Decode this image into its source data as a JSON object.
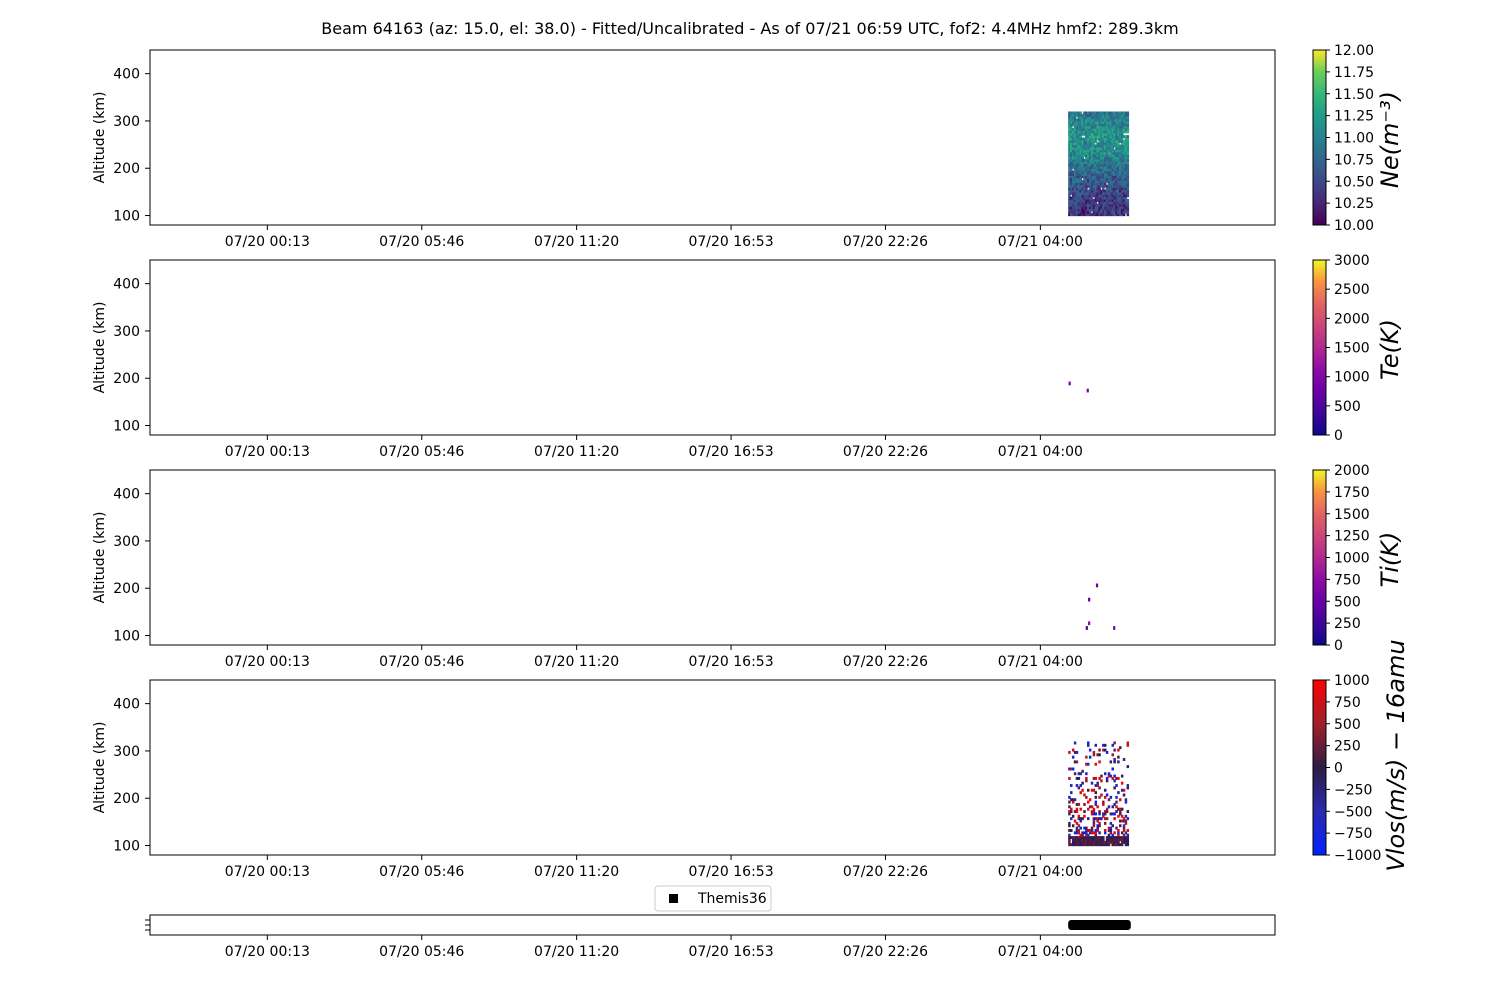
{
  "title": "Beam 64163 (az: 15.0, el: 38.0) - Fitted/Uncalibrated - As of 07/21 06:59 UTC, fof2: 4.4MHz  hmf2: 289.3km",
  "chart_data": [
    {
      "type": "heatmap",
      "parameter": "Ne",
      "ylabel": "Altitude (km)",
      "x_ticks": [
        "07/20 00:13",
        "07/20 05:46",
        "07/20 11:20",
        "07/20 16:53",
        "07/20 22:26",
        "07/21 04:00"
      ],
      "xlim": [
        "07/19 20:00",
        "07/21 12:26"
      ],
      "ylim": [
        80,
        450
      ],
      "y_ticks": [
        100,
        200,
        300,
        400
      ],
      "data_extent": {
        "x": [
          "07/21 05:00",
          "07/21 07:10"
        ],
        "y": [
          100,
          320
        ]
      },
      "colorbar": {
        "label": "Ne(m⁻³)",
        "scale": "log10",
        "colormap": "viridis",
        "range": [
          10.0,
          12.0
        ],
        "ticks": [
          "10.00",
          "10.25",
          "10.50",
          "10.75",
          "11.00",
          "11.25",
          "11.50",
          "11.75",
          "12.00"
        ]
      }
    },
    {
      "type": "heatmap",
      "parameter": "Te",
      "ylabel": "Altitude (km)",
      "x_ticks": [
        "07/20 00:13",
        "07/20 05:46",
        "07/20 11:20",
        "07/20 16:53",
        "07/20 22:26",
        "07/21 04:00"
      ],
      "xlim": [
        "07/19 20:00",
        "07/21 12:26"
      ],
      "ylim": [
        80,
        450
      ],
      "y_ticks": [
        100,
        200,
        300,
        400
      ],
      "points": [
        {
          "t": "07/21 05:03",
          "alt": 185,
          "value": 900
        },
        {
          "t": "07/21 05:42",
          "alt": 170,
          "value": 950
        }
      ],
      "colorbar": {
        "label": "Te(K)",
        "colormap": "plasma",
        "range": [
          0,
          3000
        ],
        "ticks": [
          "0",
          "500",
          "1000",
          "1500",
          "2000",
          "2500",
          "3000"
        ]
      }
    },
    {
      "type": "heatmap",
      "parameter": "Ti",
      "ylabel": "Altitude (km)",
      "x_ticks": [
        "07/20 00:13",
        "07/20 05:46",
        "07/20 11:20",
        "07/20 16:53",
        "07/20 22:26",
        "07/21 04:00"
      ],
      "xlim": [
        "07/19 20:00",
        "07/21 12:26"
      ],
      "ylim": [
        80,
        450
      ],
      "y_ticks": [
        100,
        200,
        300,
        400
      ],
      "points": [
        {
          "t": "07/21 05:40",
          "alt": 112,
          "value": 350
        },
        {
          "t": "07/21 05:45",
          "alt": 122,
          "value": 700
        },
        {
          "t": "07/21 05:45",
          "alt": 172,
          "value": 450
        },
        {
          "t": "07/21 06:02",
          "alt": 202,
          "value": 500
        },
        {
          "t": "07/21 06:39",
          "alt": 112,
          "value": 550
        }
      ],
      "colorbar": {
        "label": "Ti(K)",
        "colormap": "plasma",
        "range": [
          0,
          2000
        ],
        "ticks": [
          "0",
          "250",
          "500",
          "750",
          "1000",
          "1250",
          "1500",
          "1750",
          "2000"
        ]
      }
    },
    {
      "type": "heatmap",
      "parameter": "Vlos-16amu",
      "ylabel": "Altitude (km)",
      "x_ticks": [
        "07/20 00:13",
        "07/20 05:46",
        "07/20 11:20",
        "07/20 16:53",
        "07/20 22:26",
        "07/21 04:00"
      ],
      "xlim": [
        "07/19 20:00",
        "07/21 12:26"
      ],
      "ylim": [
        80,
        450
      ],
      "y_ticks": [
        100,
        200,
        300,
        400
      ],
      "data_extent": {
        "x": [
          "07/21 05:00",
          "07/21 07:10"
        ],
        "y": [
          100,
          320
        ]
      },
      "colorbar": {
        "label": "Vlos(m/s) − 16amu",
        "colormap": "bwr-dark",
        "range": [
          -1000,
          1000
        ],
        "ticks": [
          "1000",
          "750",
          "500",
          "250",
          "0",
          "−250",
          "−500",
          "−750",
          "−1000"
        ]
      }
    },
    {
      "type": "scatter",
      "parameter": "experiment-timeline",
      "legend": [
        "Themis36"
      ],
      "legend_position": "top-center",
      "x_ticks": [
        "07/20 00:13",
        "07/20 05:46",
        "07/20 11:20",
        "07/20 16:53",
        "07/20 22:26",
        "07/21 04:00"
      ],
      "span": [
        "07/21 05:00",
        "07/21 07:15"
      ]
    }
  ]
}
